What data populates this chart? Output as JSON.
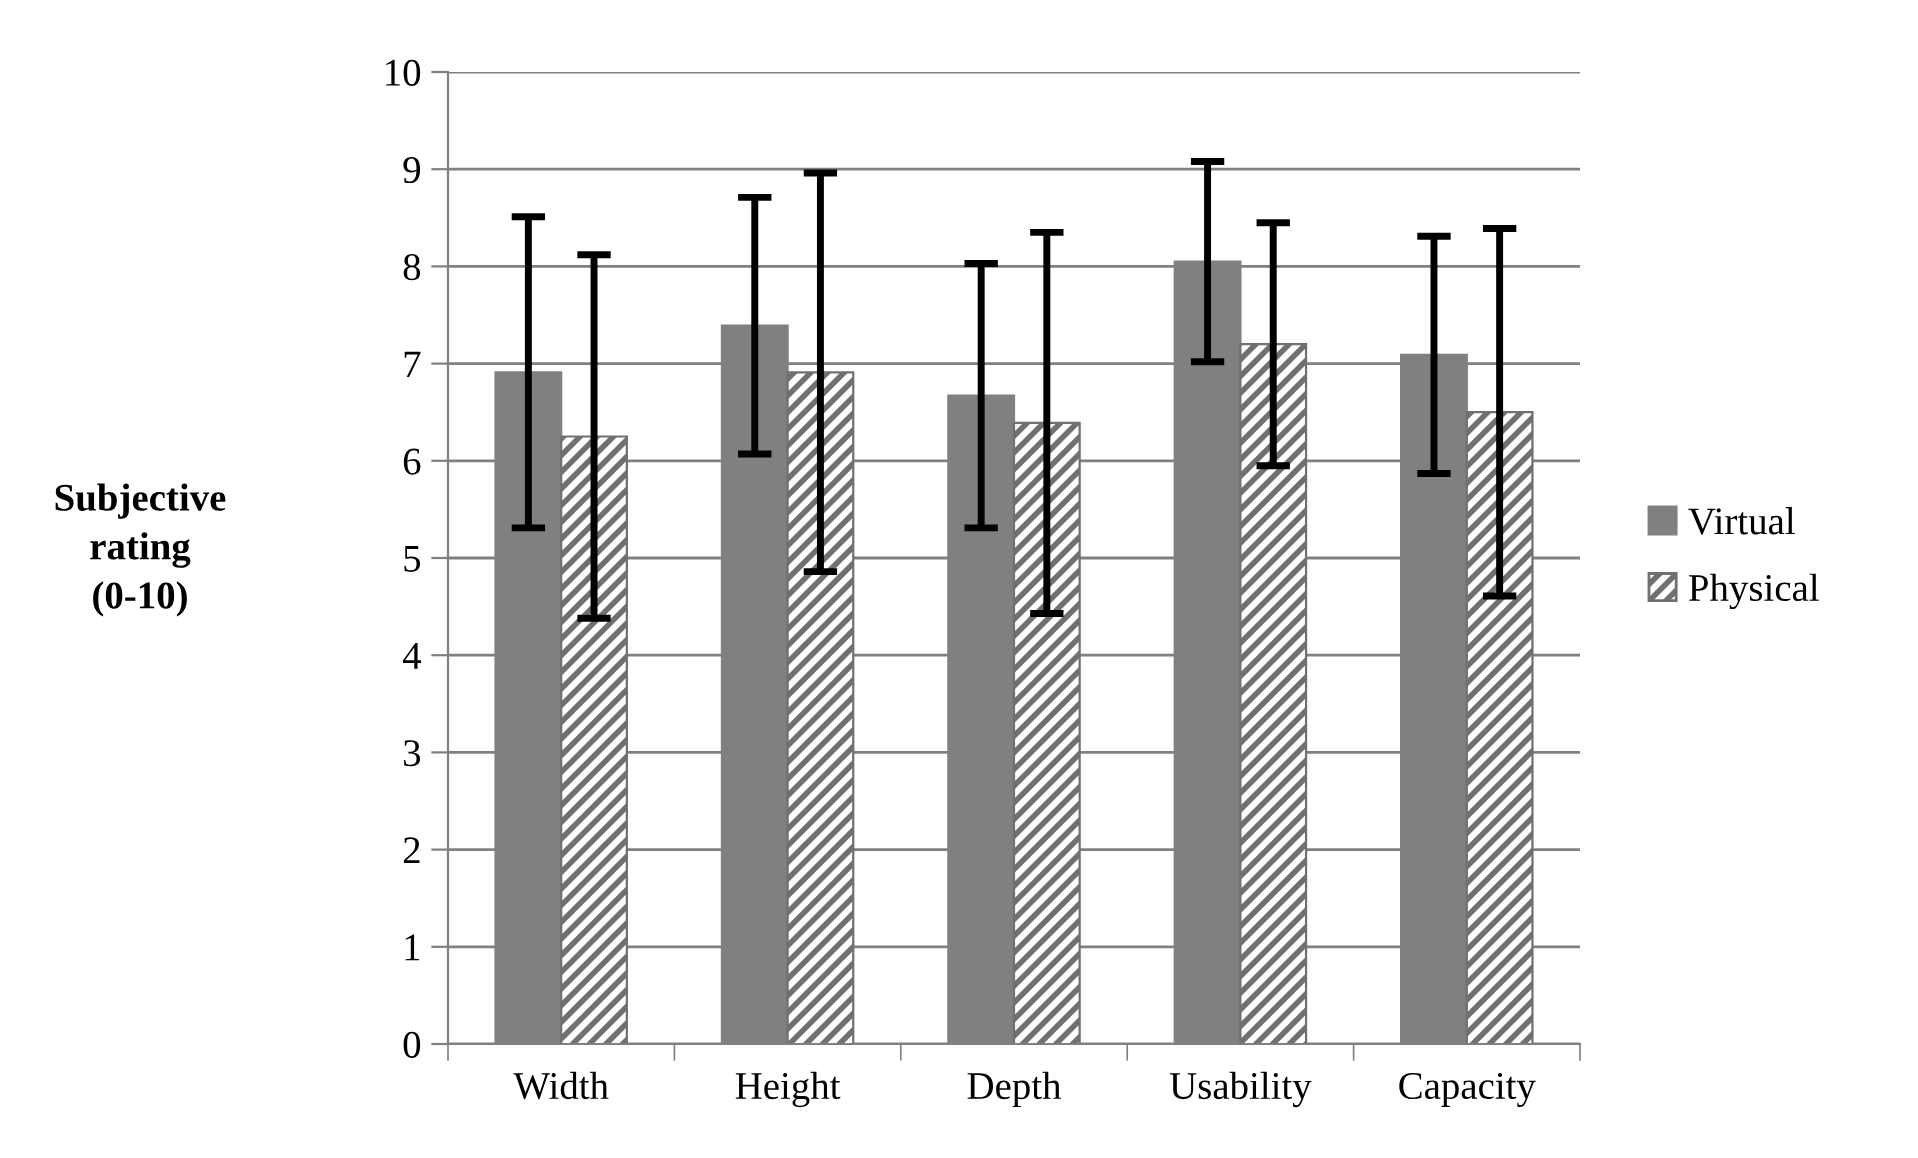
{
  "chart_data": {
    "type": "bar",
    "ylabel": "Subjective\nrating\n(0-10)",
    "categories": [
      "Width",
      "Height",
      "Depth",
      "Usability",
      "Capacity"
    ],
    "series": [
      {
        "name": "Virtual",
        "color": "#808080",
        "values": [
          6.91,
          7.39,
          6.67,
          8.05,
          7.09
        ],
        "errors": [
          1.6,
          1.32,
          1.36,
          1.03,
          1.22
        ]
      },
      {
        "name": "Physical",
        "color": "#707070",
        "values": [
          6.25,
          6.91,
          6.39,
          7.2,
          6.5
        ],
        "errors": [
          1.87,
          2.05,
          1.96,
          1.25,
          1.89
        ]
      }
    ],
    "ylim": [
      0,
      10
    ],
    "yticks": [
      0,
      1,
      2,
      3,
      4,
      5,
      6,
      7,
      8,
      9,
      10
    ],
    "grid": "y",
    "legend": "right"
  }
}
